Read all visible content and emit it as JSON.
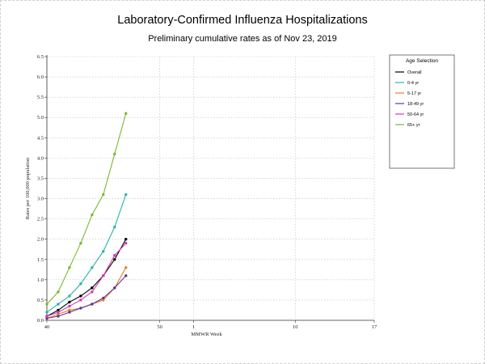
{
  "header": {
    "title": "Laboratory-Confirmed Influenza Hospitalizations",
    "subtitle": "Preliminary cumulative rates as of Nov 23, 2019"
  },
  "legend": {
    "title": "Age Selection",
    "placement": "right"
  },
  "chart_data": {
    "type": "line",
    "title": "Laboratory-Confirmed Influenza Hospitalizations",
    "subtitle": "Preliminary cumulative rates as of Nov 23, 2019",
    "xlabel": "MMWR Week",
    "ylabel": "Rates per 100,000 population",
    "x_tick_labels": [
      "40",
      "50",
      "1",
      "10",
      "17"
    ],
    "x_tick_positions": [
      0,
      10,
      13,
      22,
      29
    ],
    "xlim": [
      0,
      29
    ],
    "ylim": [
      0,
      6.5
    ],
    "y_ticks": [
      "0.0",
      "0.5",
      "1.0",
      "1.5",
      "2.0",
      "2.5",
      "3.0",
      "3.5",
      "4.0",
      "4.5",
      "5.0",
      "5.5",
      "6.0",
      "6.5"
    ],
    "grid": true,
    "x": [
      0,
      1,
      2,
      3,
      4,
      5,
      6,
      7
    ],
    "series": [
      {
        "name": "Overall",
        "color": "#000000",
        "values": [
          0.1,
          0.25,
          0.45,
          0.6,
          0.8,
          1.1,
          1.5,
          2.0
        ]
      },
      {
        "name": "0-4 yr",
        "color": "#2ab5a5",
        "values": [
          0.2,
          0.4,
          0.6,
          0.9,
          1.3,
          1.7,
          2.3,
          3.1
        ]
      },
      {
        "name": "5-17 yr",
        "color": "#f07b22",
        "values": [
          0.05,
          0.15,
          0.25,
          0.3,
          0.4,
          0.5,
          0.8,
          1.3
        ]
      },
      {
        "name": "18-49 yr",
        "color": "#5a3a9a",
        "values": [
          0.05,
          0.1,
          0.2,
          0.3,
          0.4,
          0.55,
          0.8,
          1.1
        ]
      },
      {
        "name": "50-64 yr",
        "color": "#d23ab5",
        "values": [
          0.1,
          0.2,
          0.35,
          0.5,
          0.7,
          1.1,
          1.6,
          1.9
        ]
      },
      {
        "name": "65+ yr",
        "color": "#7cb82f",
        "values": [
          0.4,
          0.7,
          1.3,
          1.9,
          2.6,
          3.1,
          4.1,
          5.1
        ]
      }
    ]
  }
}
